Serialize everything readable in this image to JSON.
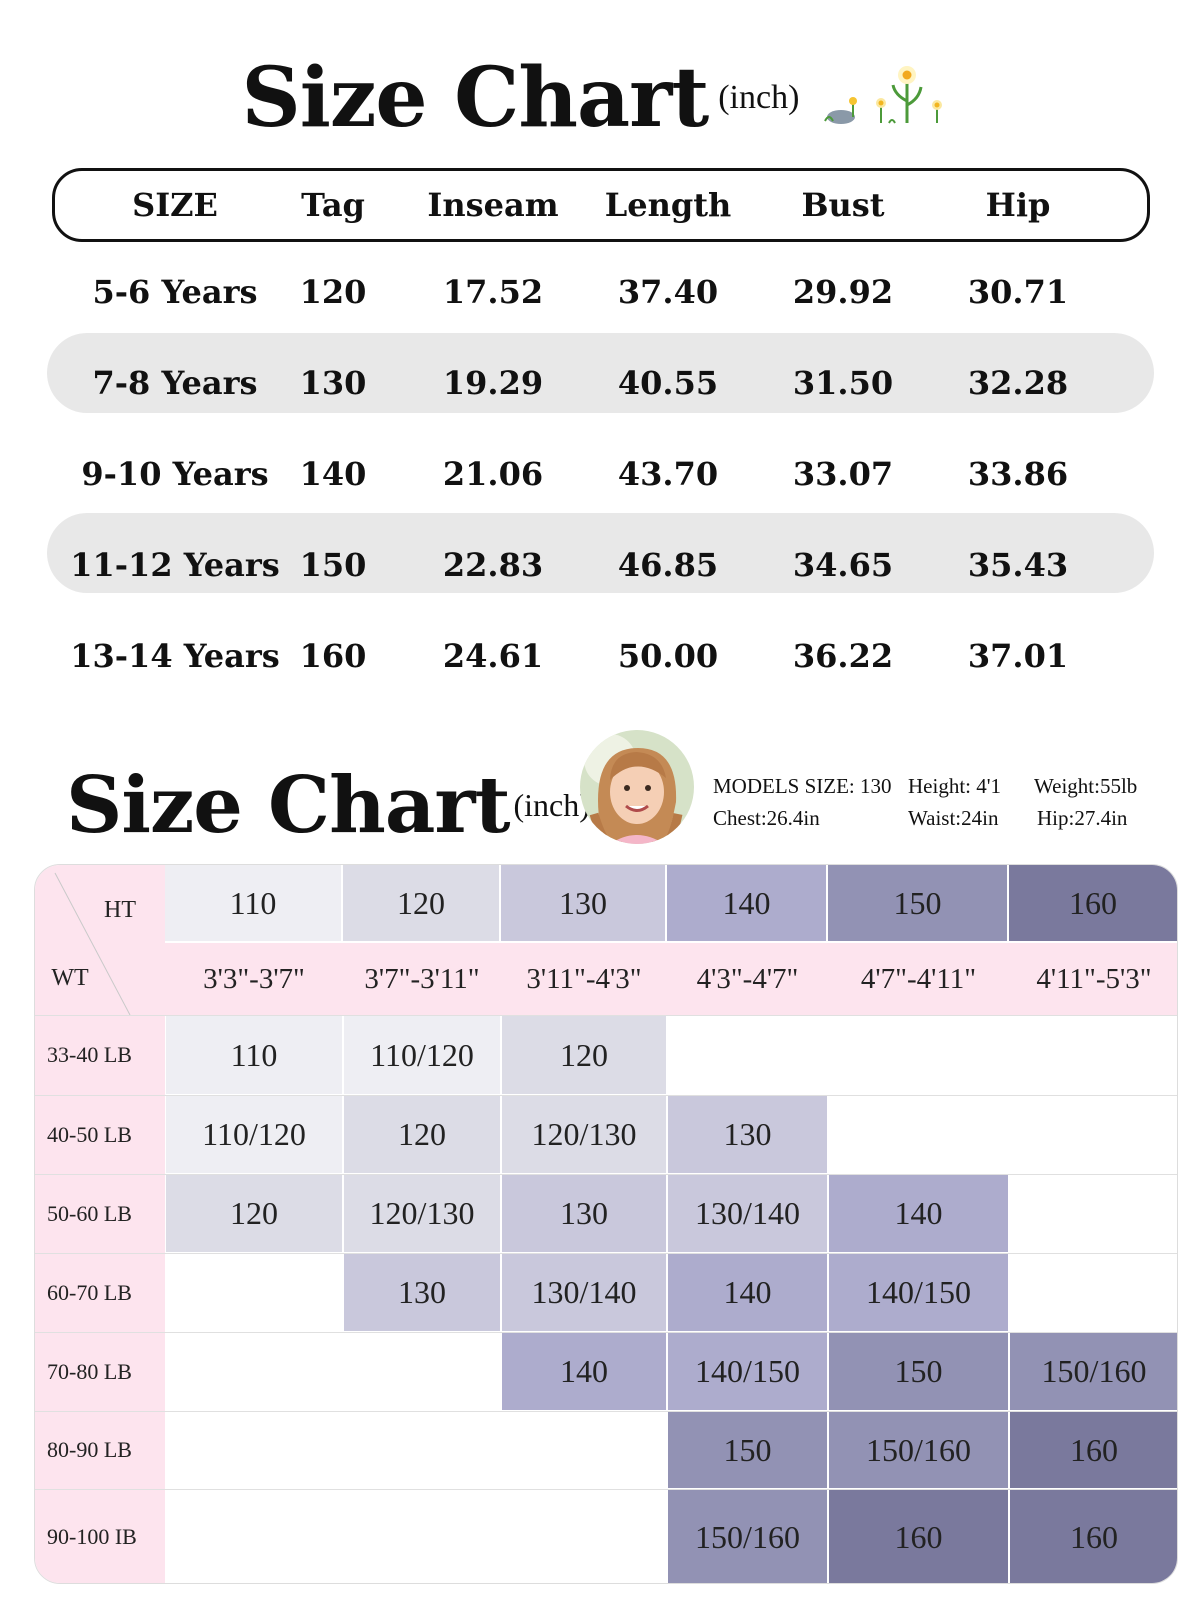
{
  "chart1": {
    "title": "Size Chart",
    "unit": "(inch)",
    "columns": [
      "SIZE",
      "Tag",
      "Inseam",
      "Length",
      "Bust",
      "Hip"
    ],
    "rows": [
      [
        "5-6 Years",
        "120",
        "17.52",
        "37.40",
        "29.92",
        "30.71"
      ],
      [
        "7-8 Years",
        "130",
        "19.29",
        "40.55",
        "31.50",
        "32.28"
      ],
      [
        "9-10 Years",
        "140",
        "21.06",
        "43.70",
        "33.07",
        "33.86"
      ],
      [
        "11-12 Years",
        "150",
        "22.83",
        "46.85",
        "34.65",
        "35.43"
      ],
      [
        "13-14 Years",
        "160",
        "24.61",
        "50.00",
        "36.22",
        "37.01"
      ]
    ]
  },
  "chart2": {
    "title": "Size Chart",
    "unit": "(inch)",
    "model": {
      "size": "MODELS  SIZE: 130",
      "height": "Height: 4'1",
      "weight": "Weight:55lb",
      "chest": "Chest:26.4in",
      "waist": "Waist:24in",
      "hip": "Hip:27.4in"
    },
    "ht_label": "HT",
    "wt_label": "WT",
    "heights": [
      "110",
      "120",
      "130",
      "140",
      "150",
      "160"
    ],
    "height_ranges": [
      "3'3\"-3'7\"",
      "3'7\"-3'11\"",
      "3'11\"-4'3\"",
      "4'3\"-4'7\"",
      "4'7\"-4'11\"",
      "4'11\"-5'3\""
    ],
    "weights": [
      "33-40 LB",
      "40-50 LB",
      "50-60 LB",
      "60-70 LB",
      "70-80 LB",
      "80-90 LB",
      "90-100 IB"
    ],
    "cells": [
      [
        "110",
        "110/120",
        "120",
        "",
        "",
        ""
      ],
      [
        "110/120",
        "120",
        "120/130",
        "130",
        "",
        ""
      ],
      [
        "120",
        "120/130",
        "130",
        "130/140",
        "140",
        ""
      ],
      [
        "",
        "130",
        "130/140",
        "140",
        "140/150",
        ""
      ],
      [
        "",
        "",
        "140",
        "140/150",
        "150",
        "150/160"
      ],
      [
        "",
        "",
        "",
        "150",
        "150/160",
        "160"
      ],
      [
        "",
        "",
        "",
        "150/160",
        "160",
        "160"
      ]
    ],
    "colors": {
      "110": "#eeeef3",
      "120": "#dcdce6",
      "130": "#c9c8dc",
      "140": "#adaccd",
      "150": "#9292b4",
      "160": "#7a799d",
      "pink": "#fde4ee",
      "white": "#ffffff"
    }
  }
}
